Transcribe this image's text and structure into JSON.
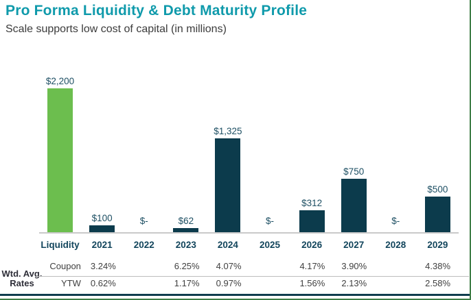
{
  "header": {
    "title": "Pro Forma Liquidity & Debt Maturity Profile",
    "subtitle": "Scale supports low cost of capital (in millions)"
  },
  "colors": {
    "liquidity_bar": "#6cbe4e",
    "debt_bar": "#0c3b4c",
    "title_teal": "#0f9aab",
    "axis_gray": "#c9c9c9",
    "bottom_rule": "#0e3c4e"
  },
  "chart_data": {
    "type": "bar",
    "title": "Pro Forma Liquidity & Debt Maturity Profile",
    "subtitle": "Scale supports low cost of capital (in millions)",
    "categories": [
      "Liquidity",
      "2021",
      "2022",
      "2023",
      "2024",
      "2025",
      "2026",
      "2027",
      "2028",
      "2029"
    ],
    "values": [
      2200,
      100,
      0,
      62,
      1325,
      0,
      312,
      750,
      0,
      500
    ],
    "value_labels": [
      "$2,200",
      "$100",
      "$-",
      "$62",
      "$1,325",
      "$-",
      "$312",
      "$750",
      "$-",
      "$500"
    ],
    "bar_colors": [
      "#6cbe4e",
      "#0c3b4c",
      "#0c3b4c",
      "#0c3b4c",
      "#0c3b4c",
      "#0c3b4c",
      "#0c3b4c",
      "#0c3b4c",
      "#0c3b4c",
      "#0c3b4c"
    ],
    "xlabel": "",
    "ylabel": "",
    "ylim": [
      0,
      2200
    ],
    "grid": false,
    "legend": false
  },
  "rates_table": {
    "row_header_line1": "Wtd. Avg.",
    "row_header_line2": "Rates",
    "rows": [
      {
        "label": "Coupon",
        "values": [
          "3.24%",
          "",
          "6.25%",
          "4.07%",
          "",
          "4.17%",
          "3.90%",
          "",
          "4.38%"
        ]
      },
      {
        "label": "YTW",
        "values": [
          "0.62%",
          "",
          "1.17%",
          "0.97%",
          "",
          "1.56%",
          "2.13%",
          "",
          "2.58%"
        ]
      }
    ]
  }
}
